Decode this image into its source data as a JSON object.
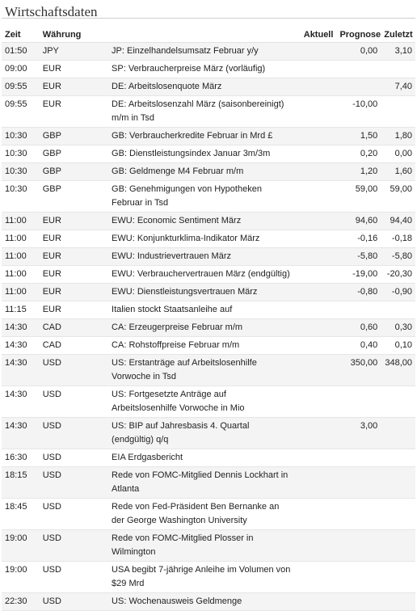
{
  "title": "Wirtschaftsdaten",
  "headers": {
    "zeit": "Zeit",
    "waehrung": "Währung",
    "event": "",
    "aktuell": "Aktuell",
    "prognose": "Prognose",
    "zuletzt": "Zuletzt"
  },
  "rows": [
    {
      "zeit": "01:50",
      "waehrung": "JPY",
      "event": "JP: Einzelhandelsumsatz Februar y/y",
      "aktuell": "",
      "prognose": "0,00",
      "zuletzt": "3,10"
    },
    {
      "zeit": "09:00",
      "waehrung": "EUR",
      "event": "SP: Verbraucherpreise März (vorläufig)",
      "aktuell": "",
      "prognose": "",
      "zuletzt": ""
    },
    {
      "zeit": "09:55",
      "waehrung": "EUR",
      "event": "DE: Arbeitslosenquote März",
      "aktuell": "",
      "prognose": "",
      "zuletzt": "7,40"
    },
    {
      "zeit": "09:55",
      "waehrung": "EUR",
      "event": "DE: Arbeitslosenzahl März (saisonbereinigt) m/m in Tsd",
      "aktuell": "",
      "prognose": "-10,00",
      "zuletzt": ""
    },
    {
      "zeit": "10:30",
      "waehrung": "GBP",
      "event": "GB: Verbraucherkredite Februar in Mrd £",
      "aktuell": "",
      "prognose": "1,50",
      "zuletzt": "1,80"
    },
    {
      "zeit": "10:30",
      "waehrung": "GBP",
      "event": "GB: Dienstleistungsindex Januar 3m/3m",
      "aktuell": "",
      "prognose": "0,20",
      "zuletzt": "0,00"
    },
    {
      "zeit": "10:30",
      "waehrung": "GBP",
      "event": "GB: Geldmenge M4 Februar m/m",
      "aktuell": "",
      "prognose": "1,20",
      "zuletzt": "1,60"
    },
    {
      "zeit": "10:30",
      "waehrung": "GBP",
      "event": "GB: Genehmigungen von Hypotheken Februar in Tsd",
      "aktuell": "",
      "prognose": "59,00",
      "zuletzt": "59,00"
    },
    {
      "zeit": "11:00",
      "waehrung": "EUR",
      "event": "EWU: Economic Sentiment März",
      "aktuell": "",
      "prognose": "94,60",
      "zuletzt": "94,40"
    },
    {
      "zeit": "11:00",
      "waehrung": "EUR",
      "event": "EWU: Konjunkturklima-Indikator März",
      "aktuell": "",
      "prognose": "-0,16",
      "zuletzt": "-0,18"
    },
    {
      "zeit": "11:00",
      "waehrung": "EUR",
      "event": "EWU: Industrievertrauen März",
      "aktuell": "",
      "prognose": "-5,80",
      "zuletzt": "-5,80"
    },
    {
      "zeit": "11:00",
      "waehrung": "EUR",
      "event": "EWU: Verbrauchervertrauen März (endgültig)",
      "aktuell": "",
      "prognose": "-19,00",
      "zuletzt": "-20,30"
    },
    {
      "zeit": "11:00",
      "waehrung": "EUR",
      "event": "EWU: Dienstleistungsvertrauen März",
      "aktuell": "",
      "prognose": "-0,80",
      "zuletzt": "-0,90"
    },
    {
      "zeit": "11:15",
      "waehrung": "EUR",
      "event": "Italien stockt Staatsanleihe auf",
      "aktuell": "",
      "prognose": "",
      "zuletzt": ""
    },
    {
      "zeit": "14:30",
      "waehrung": "CAD",
      "event": "CA: Erzeugerpreise Februar m/m",
      "aktuell": "",
      "prognose": "0,60",
      "zuletzt": "0,30"
    },
    {
      "zeit": "14:30",
      "waehrung": "CAD",
      "event": "CA: Rohstoffpreise Februar m/m",
      "aktuell": "",
      "prognose": "0,40",
      "zuletzt": "0,10"
    },
    {
      "zeit": "14:30",
      "waehrung": "USD",
      "event": "US: Erstanträge auf Arbeitslosenhilfe Vorwoche in Tsd",
      "aktuell": "",
      "prognose": "350,00",
      "zuletzt": "348,00"
    },
    {
      "zeit": "14:30",
      "waehrung": "USD",
      "event": "US: Fortgesetzte Anträge auf Arbeitslosenhilfe Vorwoche in Mio",
      "aktuell": "",
      "prognose": "",
      "zuletzt": ""
    },
    {
      "zeit": "14:30",
      "waehrung": "USD",
      "event": "US: BIP auf Jahresbasis 4. Quartal (endgültig) q/q",
      "aktuell": "",
      "prognose": "3,00",
      "zuletzt": ""
    },
    {
      "zeit": "16:30",
      "waehrung": "USD",
      "event": "EIA Erdgasbericht",
      "aktuell": "",
      "prognose": "",
      "zuletzt": ""
    },
    {
      "zeit": "18:15",
      "waehrung": "USD",
      "event": "Rede von FOMC-Mitglied Dennis Lockhart in Atlanta",
      "aktuell": "",
      "prognose": "",
      "zuletzt": ""
    },
    {
      "zeit": "18:45",
      "waehrung": "USD",
      "event": "Rede von Fed-Präsident Ben Bernanke an der George Washington University",
      "aktuell": "",
      "prognose": "",
      "zuletzt": ""
    },
    {
      "zeit": "19:00",
      "waehrung": "USD",
      "event": "Rede von FOMC-Mitglied Plosser in Wilmington",
      "aktuell": "",
      "prognose": "",
      "zuletzt": ""
    },
    {
      "zeit": "19:00",
      "waehrung": "USD",
      "event": "USA begibt 7-jährige Anleihe im Volumen von $29 Mrd",
      "aktuell": "",
      "prognose": "",
      "zuletzt": ""
    },
    {
      "zeit": "22:30",
      "waehrung": "USD",
      "event": "US: Wochenausweis Geldmenge",
      "aktuell": "",
      "prognose": "",
      "zuletzt": ""
    }
  ]
}
